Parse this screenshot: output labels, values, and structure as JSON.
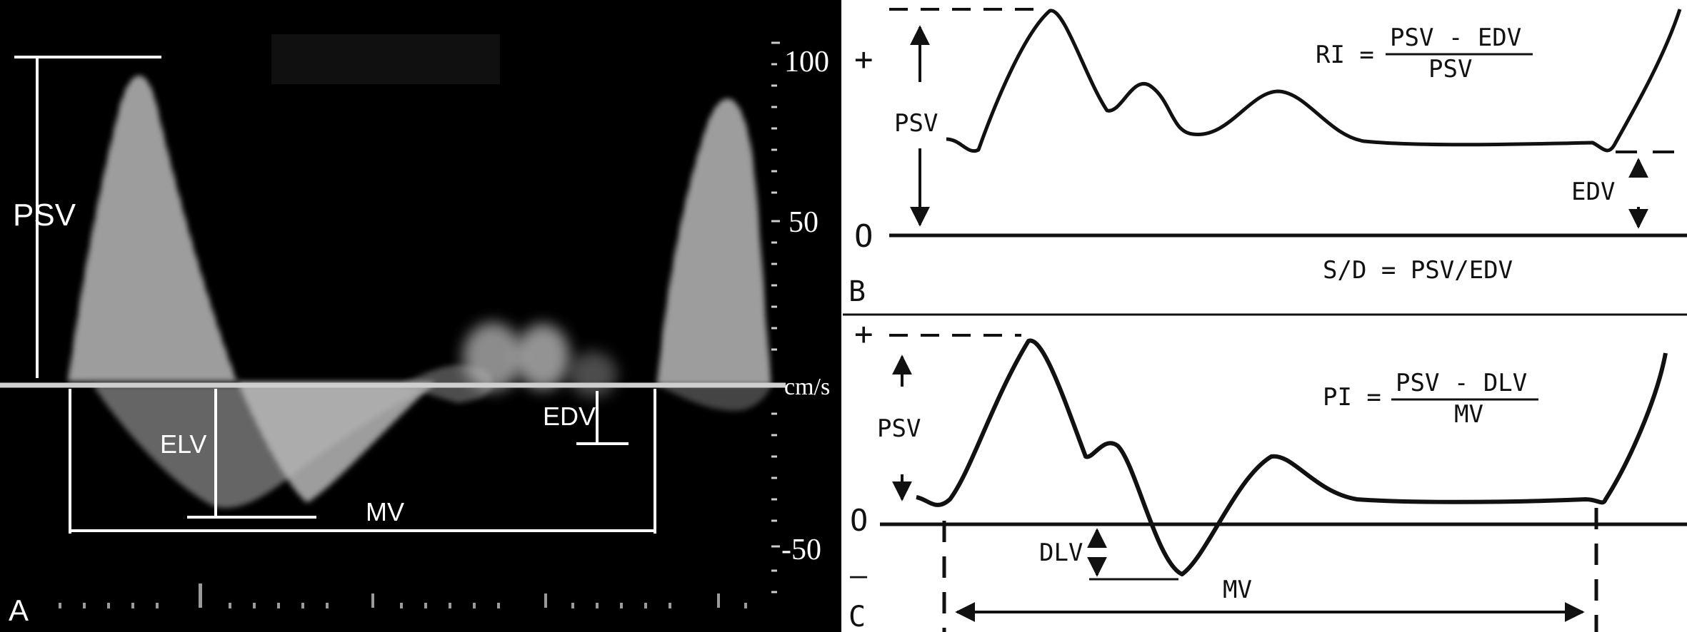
{
  "panel_a": {
    "label": "A",
    "psv_label": "PSV",
    "elv_label": "ELV",
    "edv_label": "EDV",
    "mv_label": "MV",
    "scale_top": "100",
    "scale_mid": "50",
    "scale_bottom": "-50",
    "unit": "cm/s"
  },
  "panel_b": {
    "label": "B",
    "plus_sign": "+",
    "zero_label": "O",
    "psv_label": "PSV",
    "edv_label": "EDV",
    "ri_lhs": "RI =",
    "ri_numerator": "PSV - EDV",
    "ri_denominator": "PSV",
    "sd_formula": "S/D = PSV/EDV"
  },
  "panel_c": {
    "label": "C",
    "plus_sign": "+",
    "zero_label": "O",
    "minus_sign": "—",
    "psv_label": "PSV",
    "dlv_label": "DLV",
    "mv_label": "MV",
    "pi_lhs": "PI =",
    "pi_numerator": "PSV - DLV",
    "pi_denominator": "MV"
  },
  "colors": {
    "ultrasound_background": "#000000",
    "signal": "#d8d8d8",
    "annotation": "#ffffff",
    "diagram_ink": "#111111"
  }
}
